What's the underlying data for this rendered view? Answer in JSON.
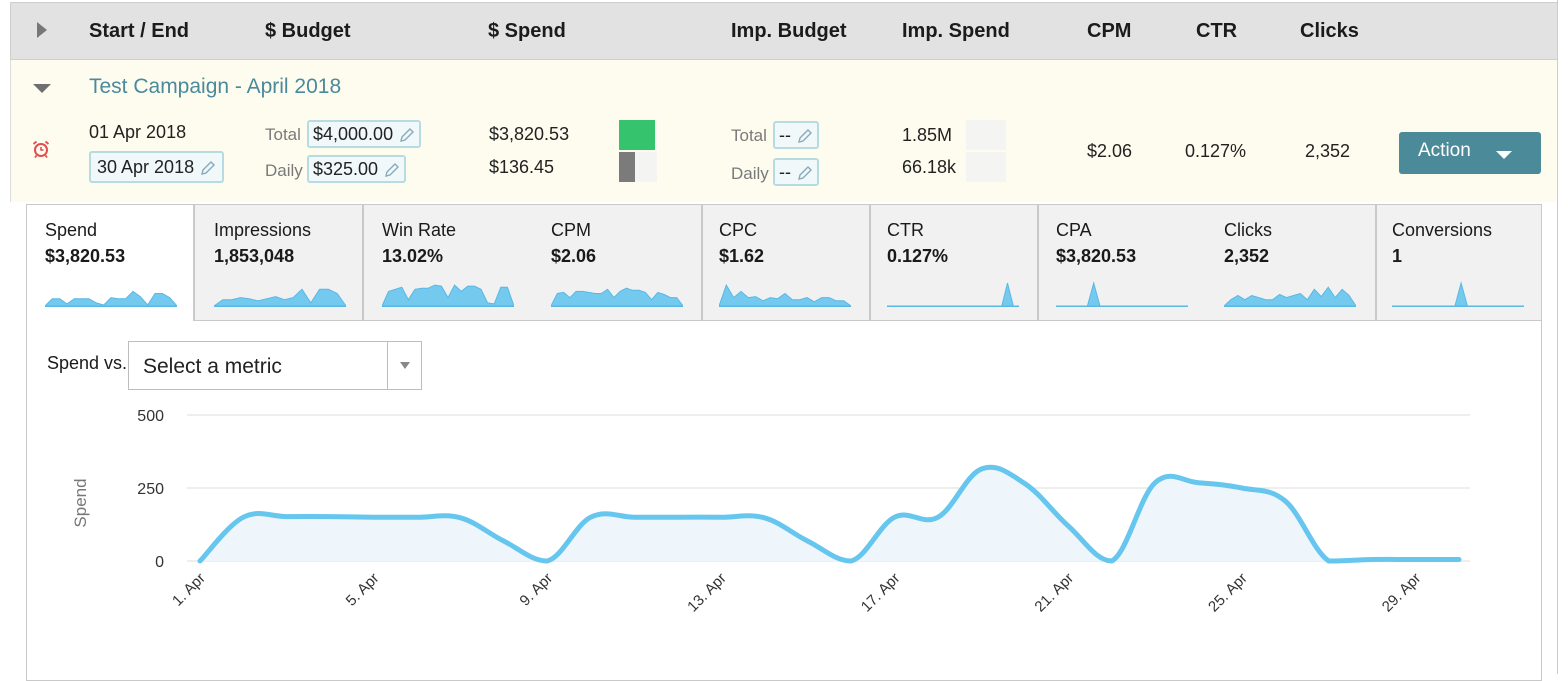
{
  "header": {
    "columns": [
      "Start / End",
      "$ Budget",
      "$ Spend",
      "Imp. Budget",
      "Imp. Spend",
      "CPM",
      "CTR",
      "Clicks"
    ]
  },
  "campaign": {
    "title": "Test Campaign - April 2018",
    "start": "01 Apr 2018",
    "end": "30 Apr 2018",
    "budget_total_label": "Total",
    "budget_total": "$4,000.00",
    "budget_daily_label": "Daily",
    "budget_daily": "$325.00",
    "spend_total": "$3,820.53",
    "spend_daily": "$136.45",
    "spend_total_pct": 96,
    "spend_daily_pct": 42,
    "spend_total_color": "#35c46d",
    "spend_daily_color": "#7b7b7b",
    "imp_budget_total_label": "Total",
    "imp_budget_total": "--",
    "imp_budget_daily_label": "Daily",
    "imp_budget_daily": "--",
    "imp_spend_total": "1.85M",
    "imp_spend_daily": "66.18k",
    "cpm": "$2.06",
    "ctr": "0.127%",
    "clicks": "2,352",
    "action_label": "Action"
  },
  "tabs": [
    {
      "metrics": [
        {
          "name": "Spend",
          "value": "$3,820.53",
          "spark": [
            0,
            7,
            7,
            2,
            7,
            7,
            7,
            3,
            1,
            8,
            7,
            7,
            14,
            9,
            1,
            12,
            12,
            8,
            0
          ]
        }
      ]
    },
    {
      "metrics": [
        {
          "name": "Impressions",
          "value": "1,853,048",
          "spark": [
            0,
            6,
            6,
            8,
            7,
            5,
            7,
            9,
            6,
            8,
            16,
            3,
            16,
            16,
            12,
            0
          ]
        }
      ]
    },
    {
      "metrics": [
        {
          "name": "Win Rate",
          "value": "13.02%",
          "spark": [
            0,
            14,
            16,
            18,
            6,
            16,
            17,
            17,
            20,
            19,
            8,
            20,
            14,
            19,
            19,
            16,
            3,
            2,
            18,
            18,
            0
          ]
        },
        {
          "name": "CPM",
          "value": "$2.06",
          "spark": [
            0,
            12,
            13,
            8,
            14,
            14,
            13,
            12,
            12,
            16,
            8,
            14,
            17,
            15,
            15,
            13,
            6,
            13,
            11,
            8,
            8,
            0
          ]
        }
      ]
    },
    {
      "metrics": [
        {
          "name": "CPC",
          "value": "$1.62",
          "spark": [
            0,
            20,
            8,
            14,
            8,
            9,
            5,
            8,
            7,
            12,
            6,
            6,
            8,
            4,
            8,
            8,
            5,
            5,
            0
          ]
        }
      ]
    },
    {
      "metrics": [
        {
          "name": "CTR",
          "value": "0.127%",
          "spark": [
            0,
            0,
            0,
            0,
            0,
            0,
            0,
            0,
            0,
            0,
            0,
            0,
            0,
            0,
            0,
            0,
            0,
            0,
            0,
            0,
            0,
            22,
            0,
            0
          ]
        }
      ]
    },
    {
      "metrics": [
        {
          "name": "CPA",
          "value": "$3,820.53",
          "spark": [
            0,
            0,
            0,
            0,
            0,
            0,
            22,
            0,
            0,
            0,
            0,
            0,
            0,
            0,
            0,
            0,
            0,
            0,
            0,
            0,
            0,
            0
          ]
        },
        {
          "name": "Clicks",
          "value": "2,352",
          "spark": [
            0,
            6,
            10,
            6,
            10,
            8,
            6,
            6,
            11,
            8,
            10,
            12,
            6,
            16,
            9,
            18,
            8,
            16,
            10,
            0
          ]
        }
      ]
    },
    {
      "metrics": [
        {
          "name": "Conversions",
          "value": "1",
          "spark": [
            0,
            0,
            0,
            0,
            0,
            0,
            0,
            0,
            0,
            0,
            0,
            22,
            0,
            0,
            0,
            0,
            0,
            0,
            0,
            0,
            0,
            0
          ]
        }
      ]
    }
  ],
  "compare": {
    "label": "Spend vs.",
    "placeholder": "Select a metric"
  },
  "spark_color": "#74c9ee",
  "chart_data": {
    "type": "area",
    "ylabel": "Spend",
    "ylim": [
      0,
      500
    ],
    "yticks": [
      0,
      250,
      500
    ],
    "x": [
      "1. Apr",
      "2. Apr",
      "3. Apr",
      "4. Apr",
      "5. Apr",
      "6. Apr",
      "7. Apr",
      "8. Apr",
      "9. Apr",
      "10. Apr",
      "11. Apr",
      "12. Apr",
      "13. Apr",
      "14. Apr",
      "15. Apr",
      "16. Apr",
      "17. Apr",
      "18. Apr",
      "19. Apr",
      "20. Apr",
      "21. Apr",
      "22. Apr",
      "23. Apr",
      "24. Apr",
      "25. Apr",
      "26. Apr",
      "27. Apr",
      "28. Apr",
      "29. Apr",
      "30. Apr"
    ],
    "xtick_labels": [
      "1. Apr",
      "5. Apr",
      "9. Apr",
      "13. Apr",
      "17. Apr",
      "21. Apr",
      "25. Apr",
      "29. Apr"
    ],
    "series": [
      {
        "values": [
          0,
          150,
          152,
          152,
          150,
          150,
          148,
          68,
          0,
          150,
          150,
          150,
          150,
          148,
          68,
          0,
          150,
          150,
          315,
          265,
          120,
          0,
          268,
          268,
          250,
          205,
          0,
          5,
          5,
          5
        ]
      }
    ],
    "line_color": "#66c6ee",
    "fill_color": "#eef6fc",
    "grid": true
  }
}
